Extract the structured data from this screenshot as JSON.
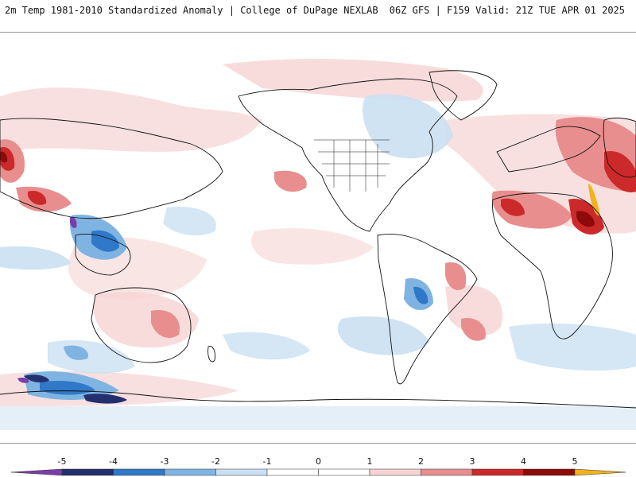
{
  "header": {
    "left_title": "2m Temp 1981-2010 Standardized Anomaly | College of DuPage NEXLAB",
    "right_title": "06Z GFS | F159 Valid: 21Z TUE APR 01 2025"
  },
  "colorbar": {
    "ticks": [
      "-5",
      "-4",
      "-3",
      "-2",
      "-1",
      "0",
      "1",
      "2",
      "3",
      "4",
      "5"
    ],
    "colors": {
      "lt_-5": "#7a3ea8",
      "-5_-4": "#24306e",
      "-4_-3": "#2f79c8",
      "-3_-2": "#7fb4e2",
      "-2_-1": "#cbe0f2",
      "-1_0": "#ffffff",
      "0_1": "#ffffff",
      "1_2": "#f6d3d3",
      "2_3": "#e88e8e",
      "3_4": "#cc2a2a",
      "4_5": "#8e0b0b",
      "gt_5": "#f2b21a"
    }
  },
  "map": {
    "features": [
      {
        "name": "anomaly-blob-north-america-east",
        "fill": "#cbe0f2"
      },
      {
        "name": "anomaly-blob-north-africa",
        "fill": "#cc2a2a"
      },
      {
        "name": "anomaly-blob-southern-ocean",
        "fill": "#24306e"
      }
    ]
  }
}
